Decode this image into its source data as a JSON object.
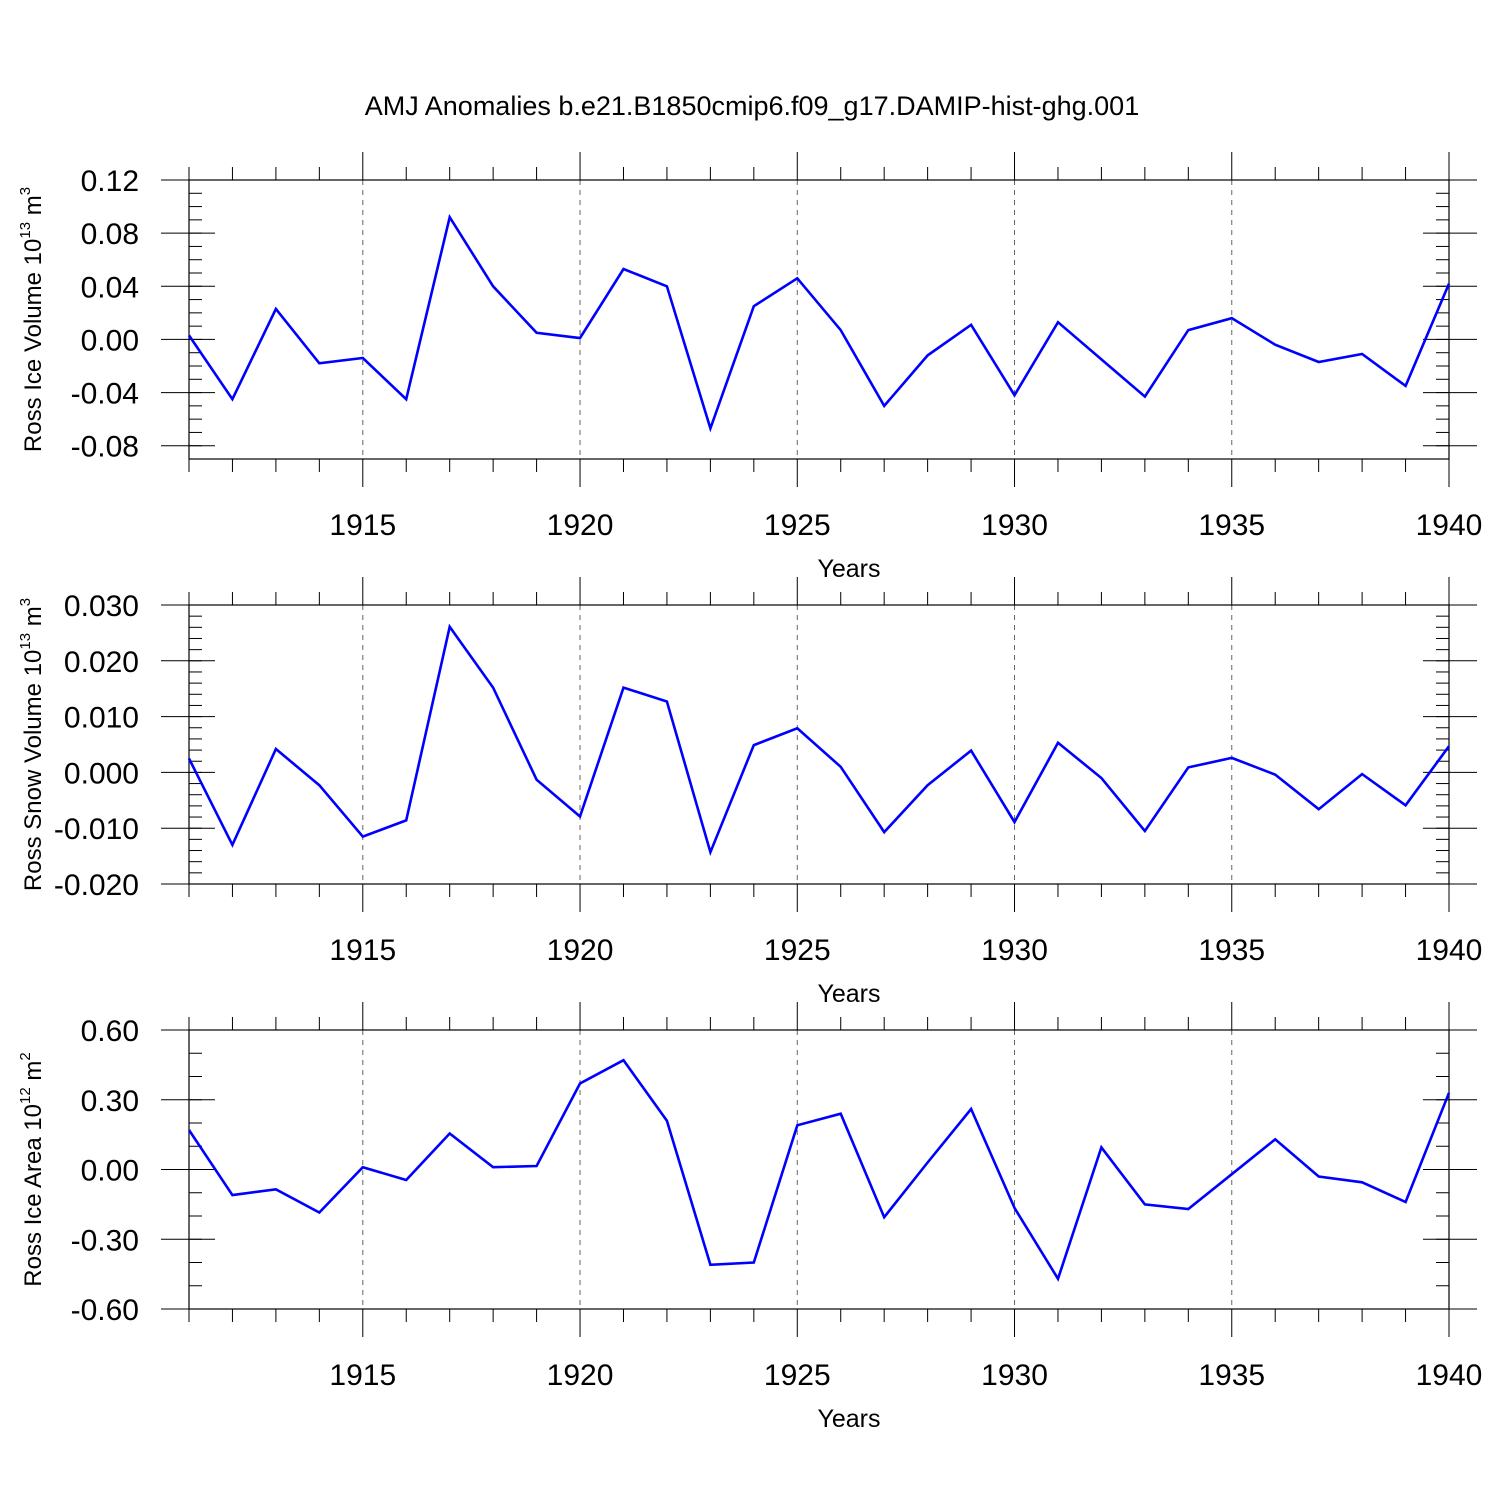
{
  "figure": {
    "title": "AMJ Anomalies b.e21.B1850cmip6.f09_g17.DAMIP-hist-ghg.001"
  },
  "chart_data": [
    {
      "type": "line",
      "ylabel": "Ross Ice Volume 10",
      "ylabel_exp": "13",
      "ylabel_unit": "m",
      "ylabel_unit_exp": "3",
      "xlabel": "Years",
      "x": [
        1911,
        1912,
        1913,
        1914,
        1915,
        1916,
        1917,
        1918,
        1919,
        1920,
        1921,
        1922,
        1923,
        1924,
        1925,
        1926,
        1927,
        1928,
        1929,
        1930,
        1931,
        1932,
        1933,
        1934,
        1935,
        1936,
        1937,
        1938,
        1939,
        1940
      ],
      "series": [
        {
          "color": "#0000ff",
          "values": [
            0.003,
            -0.045,
            0.023,
            -0.018,
            -0.014,
            -0.045,
            0.092,
            0.04,
            0.005,
            0.001,
            0.053,
            0.04,
            -0.067,
            0.025,
            0.046,
            0.007,
            -0.05,
            -0.012,
            0.011,
            -0.042,
            0.013,
            -0.015,
            -0.043,
            0.007,
            0.016,
            -0.004,
            -0.017,
            -0.011,
            -0.035,
            0.042
          ]
        }
      ],
      "xlim": [
        1911,
        1940
      ],
      "ylim": [
        -0.09,
        0.12
      ],
      "yticks": [
        "0.12",
        "0.08",
        "0.04",
        "0.00",
        "-0.04",
        "-0.08"
      ],
      "ytick_values": [
        0.12,
        0.08,
        0.04,
        0.0,
        -0.04,
        -0.08
      ],
      "yminor_step": 0.01,
      "xticks": [
        "1915",
        "1920",
        "1925",
        "1930",
        "1935",
        "1940"
      ],
      "xtick_values": [
        1915,
        1920,
        1925,
        1930,
        1935,
        1940
      ],
      "grid": "vertical dashed at major x ticks"
    },
    {
      "type": "line",
      "ylabel": "Ross Snow Volume 10",
      "ylabel_exp": "13",
      "ylabel_unit": "m",
      "ylabel_unit_exp": "3",
      "xlabel": "Years",
      "x": [
        1911,
        1912,
        1913,
        1914,
        1915,
        1916,
        1917,
        1918,
        1919,
        1920,
        1921,
        1922,
        1923,
        1924,
        1925,
        1926,
        1927,
        1928,
        1929,
        1930,
        1931,
        1932,
        1933,
        1934,
        1935,
        1936,
        1937,
        1938,
        1939,
        1940
      ],
      "series": [
        {
          "color": "#0000ff",
          "values": [
            0.0025,
            -0.013,
            0.0042,
            -0.0023,
            -0.0115,
            -0.0086,
            0.0261,
            0.0152,
            -0.0013,
            -0.0079,
            0.0152,
            0.0127,
            -0.0143,
            0.0049,
            0.0079,
            0.001,
            -0.0107,
            -0.0023,
            0.0039,
            -0.0089,
            0.0053,
            -0.001,
            -0.0105,
            0.0009,
            0.0026,
            -0.0004,
            -0.0066,
            -0.0003,
            -0.0059,
            0.0047
          ]
        }
      ],
      "xlim": [
        1911,
        1940
      ],
      "ylim": [
        -0.02,
        0.03
      ],
      "yticks": [
        "0.030",
        "0.020",
        "0.010",
        "0.000",
        "-0.010",
        "-0.020"
      ],
      "ytick_values": [
        0.03,
        0.02,
        0.01,
        0.0,
        -0.01,
        -0.02
      ],
      "yminor_step": 0.002,
      "xticks": [
        "1915",
        "1920",
        "1925",
        "1930",
        "1935",
        "1940"
      ],
      "xtick_values": [
        1915,
        1920,
        1925,
        1930,
        1935,
        1940
      ],
      "grid": "vertical dashed at major x ticks"
    },
    {
      "type": "line",
      "ylabel": "Ross Ice Area 10",
      "ylabel_exp": "12",
      "ylabel_unit": "m",
      "ylabel_unit_exp": "2",
      "xlabel": "Years",
      "x": [
        1911,
        1912,
        1913,
        1914,
        1915,
        1916,
        1917,
        1918,
        1919,
        1920,
        1921,
        1922,
        1923,
        1924,
        1925,
        1926,
        1927,
        1928,
        1929,
        1930,
        1931,
        1932,
        1933,
        1934,
        1935,
        1936,
        1937,
        1938,
        1939,
        1940
      ],
      "series": [
        {
          "color": "#0000ff",
          "values": [
            0.17,
            -0.11,
            -0.085,
            -0.185,
            0.01,
            -0.045,
            0.155,
            0.01,
            0.015,
            0.37,
            0.47,
            0.21,
            -0.41,
            -0.4,
            0.19,
            0.24,
            -0.205,
            0.03,
            0.26,
            -0.165,
            -0.47,
            0.095,
            -0.15,
            -0.17,
            -0.02,
            0.13,
            -0.03,
            -0.055,
            -0.14,
            0.33
          ]
        }
      ],
      "xlim": [
        1911,
        1940
      ],
      "ylim": [
        -0.6,
        0.6
      ],
      "yticks": [
        "0.60",
        "0.30",
        "0.00",
        "-0.30",
        "-0.60"
      ],
      "ytick_values": [
        0.6,
        0.3,
        0.0,
        -0.3,
        -0.6
      ],
      "yminor_step": 0.1,
      "xticks": [
        "1915",
        "1920",
        "1925",
        "1930",
        "1935",
        "1940"
      ],
      "xtick_values": [
        1915,
        1920,
        1925,
        1930,
        1935,
        1940
      ],
      "grid": "vertical dashed at major x ticks"
    }
  ]
}
